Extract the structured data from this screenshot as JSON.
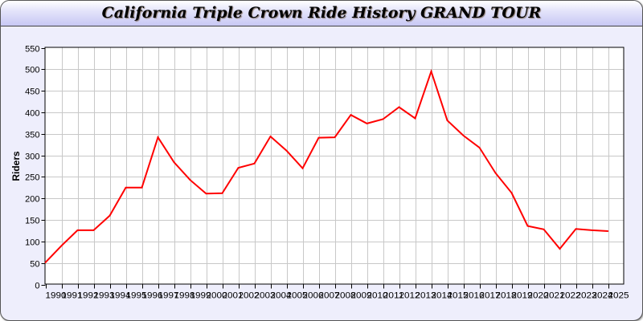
{
  "chart_data": {
    "type": "line",
    "title": "California Triple Crown Ride History GRAND TOUR",
    "xlabel": "",
    "ylabel": "Riders",
    "xlim": [
      1990,
      2026
    ],
    "ylim": [
      0,
      550
    ],
    "grid": true,
    "x_ticks": [
      1990,
      1991,
      1992,
      1993,
      1994,
      1995,
      1996,
      1997,
      1998,
      1999,
      2000,
      2001,
      2002,
      2003,
      2004,
      2005,
      2006,
      2007,
      2008,
      2009,
      2010,
      2011,
      2012,
      2013,
      2014,
      2015,
      2016,
      2017,
      2018,
      2019,
      2020,
      2021,
      2022,
      2023,
      2024,
      2025
    ],
    "y_ticks": [
      0,
      50,
      100,
      150,
      200,
      250,
      300,
      350,
      400,
      450,
      500,
      550
    ],
    "series": [
      {
        "color": "#ff0000",
        "x": [
          1990,
          1991,
          1992,
          1993,
          1994,
          1995,
          1996,
          1997,
          1998,
          1999,
          2000,
          2001,
          2002,
          2003,
          2004,
          2005,
          2006,
          2007,
          2008,
          2009,
          2010,
          2011,
          2012,
          2013,
          2014,
          2015,
          2016,
          2017,
          2018,
          2019,
          2020,
          2021,
          2022,
          2023,
          2024,
          2025
        ],
        "values": [
          51,
          90,
          126,
          126,
          160,
          225,
          225,
          342,
          284,
          243,
          211,
          212,
          271,
          281,
          344,
          311,
          270,
          341,
          342,
          394,
          374,
          384,
          412,
          386,
          495,
          381,
          346,
          318,
          259,
          213,
          136,
          128,
          83,
          129,
          126,
          124
        ]
      }
    ]
  }
}
